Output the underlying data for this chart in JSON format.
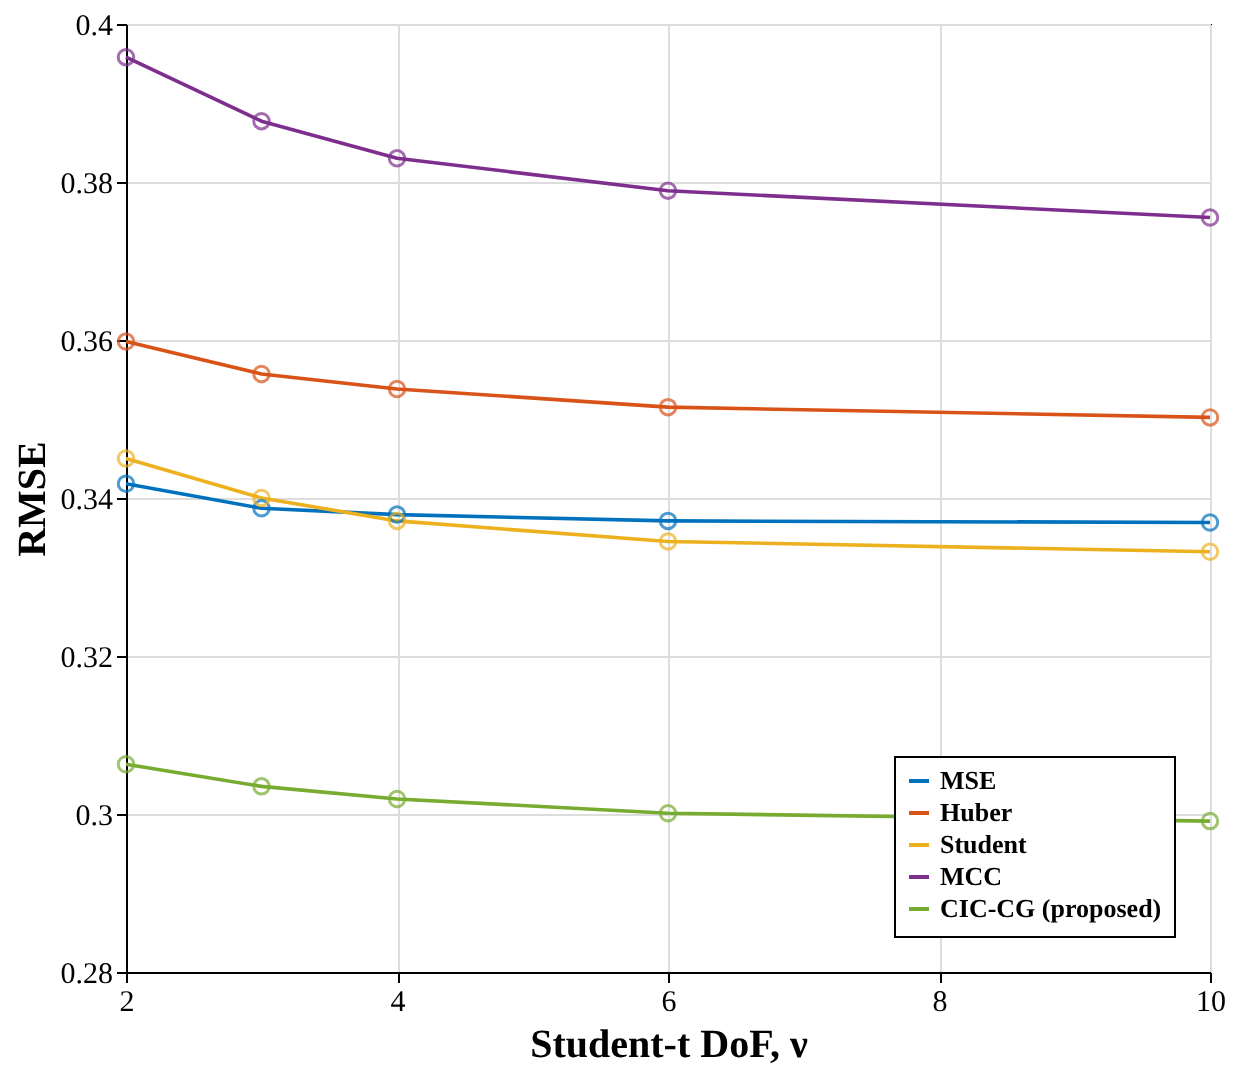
{
  "chart_data": {
    "type": "line",
    "xlabel": "Student-t DoF, ν",
    "ylabel": "RMSE",
    "x": [
      2,
      3,
      4,
      6,
      10
    ],
    "xlim": [
      2,
      10
    ],
    "xticks": [
      2,
      4,
      6,
      8,
      10
    ],
    "ylim": [
      0.28,
      0.4
    ],
    "yticks": [
      0.28,
      0.3,
      0.32,
      0.34,
      0.36,
      0.38,
      0.4
    ],
    "grid": true,
    "legend": "bottom right",
    "marker": "circle",
    "line_style": "solid",
    "series": [
      {
        "name": "MSE",
        "color": "#0072bd",
        "values": [
          0.3418,
          0.3387,
          0.3379,
          0.3371,
          0.3369
        ]
      },
      {
        "name": "Huber",
        "color": "#d95319",
        "values": [
          0.3598,
          0.3557,
          0.3538,
          0.3515,
          0.3502
        ]
      },
      {
        "name": "Student",
        "color": "#edb120",
        "values": [
          0.345,
          0.34,
          0.3371,
          0.3345,
          0.3332
        ]
      },
      {
        "name": "MCC",
        "color": "#7e2f8e",
        "values": [
          0.3958,
          0.3877,
          0.383,
          0.3789,
          0.3755
        ]
      },
      {
        "name": "CIC-CG (proposed)",
        "color": "#77ac30",
        "values": [
          0.3063,
          0.3035,
          0.3019,
          0.3001,
          0.2991
        ]
      }
    ]
  }
}
